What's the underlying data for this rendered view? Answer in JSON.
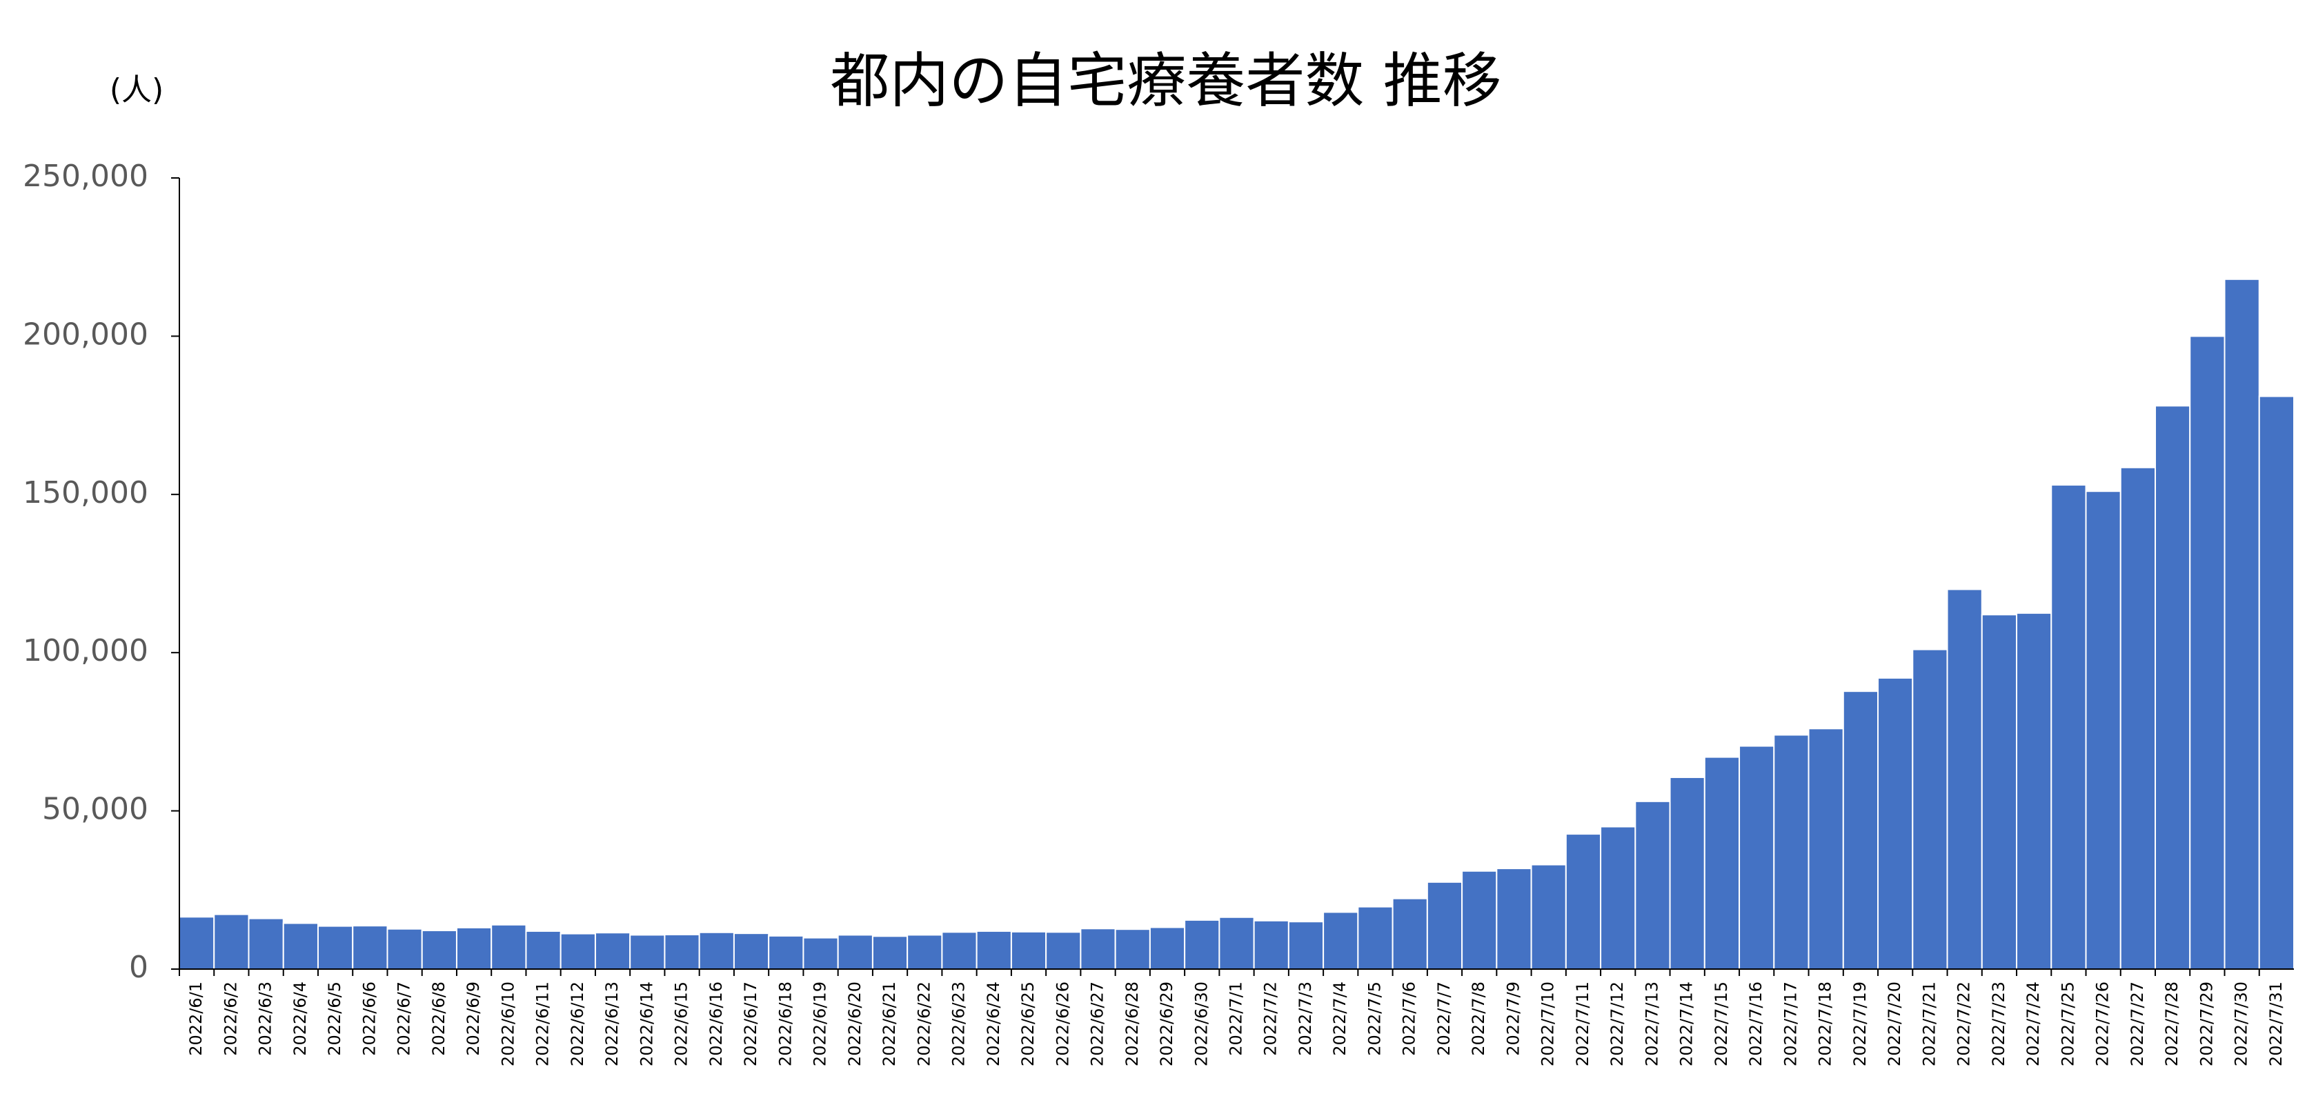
{
  "chart_data": {
    "type": "bar",
    "title": "都内の自宅療養者数 推移",
    "y_label": "(人)",
    "color": "#4472c4",
    "categories": [
      "2022/6/1",
      "2022/6/2",
      "2022/6/3",
      "2022/6/4",
      "2022/6/5",
      "2022/6/6",
      "2022/6/7",
      "2022/6/8",
      "2022/6/9",
      "2022/6/10",
      "2022/6/11",
      "2022/6/12",
      "2022/6/13",
      "2022/6/14",
      "2022/6/15",
      "2022/6/16",
      "2022/6/17",
      "2022/6/18",
      "2022/6/19",
      "2022/6/20",
      "2022/6/21",
      "2022/6/22",
      "2022/6/23",
      "2022/6/24",
      "2022/6/25",
      "2022/6/26",
      "2022/6/27",
      "2022/6/28",
      "2022/6/29",
      "2022/6/30",
      "2022/7/1",
      "2022/7/2",
      "2022/7/3",
      "2022/7/4",
      "2022/7/5",
      "2022/7/6",
      "2022/7/7",
      "2022/7/8",
      "2022/7/9",
      "2022/7/10",
      "2022/7/11",
      "2022/7/12",
      "2022/7/13",
      "2022/7/14",
      "2022/7/15",
      "2022/7/16",
      "2022/7/17",
      "2022/7/18",
      "2022/7/19",
      "2022/7/20",
      "2022/7/21",
      "2022/7/22",
      "2022/7/23",
      "2022/7/24",
      "2022/7/25",
      "2022/7/26",
      "2022/7/27",
      "2022/7/28",
      "2022/7/29",
      "2022/7/30",
      "2022/7/31"
    ],
    "values": [
      16500,
      17300,
      16000,
      14500,
      13600,
      13700,
      12700,
      12200,
      13100,
      14000,
      12000,
      11200,
      11500,
      10800,
      10900,
      11600,
      11300,
      10500,
      9900,
      10800,
      10400,
      10800,
      11700,
      12000,
      11800,
      11700,
      12800,
      12600,
      13200,
      15500,
      16400,
      15300,
      15000,
      18000,
      19700,
      22300,
      27500,
      31000,
      31800,
      33000,
      42700,
      45000,
      53000,
      60600,
      67000,
      70500,
      74000,
      76000,
      87800,
      92000,
      101000,
      120000,
      112000,
      112500,
      153000,
      151000,
      158500,
      178000,
      200000,
      218000,
      181000
    ],
    "ylim": [
      0,
      250000
    ],
    "yticks": [
      0,
      {
        "value": 50000,
        "label": "50,000"
      },
      {
        "value": 100000,
        "label": "100,000"
      },
      {
        "value": 150000,
        "label": "150,000"
      },
      {
        "value": 200000,
        "label": "200,000"
      },
      {
        "value": 250000,
        "label": "250,000"
      }
    ],
    "grid": false
  }
}
